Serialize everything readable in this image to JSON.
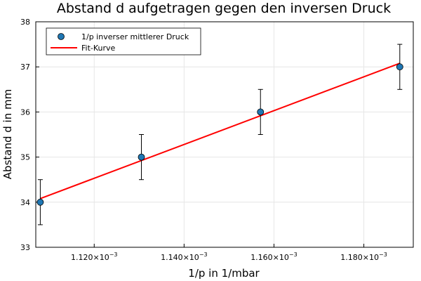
{
  "chart_data": {
    "type": "scatter",
    "title": "Abstand d aufgetragen gegen den inversen Druck",
    "xlabel": "1/p in 1/mbar",
    "ylabel": "Abstand d in mm",
    "xlim": [
      0.001107,
      0.001191
    ],
    "ylim": [
      33,
      38
    ],
    "x_ticks": [
      0.00112,
      0.00114,
      0.00116,
      0.00118
    ],
    "x_tick_labels": [
      {
        "mantissa": "1.120",
        "base": "×10",
        "exponent": "−3"
      },
      {
        "mantissa": "1.140",
        "base": "×10",
        "exponent": "−3"
      },
      {
        "mantissa": "1.160",
        "base": "×10",
        "exponent": "−3"
      },
      {
        "mantissa": "1.180",
        "base": "×10",
        "exponent": "−3"
      }
    ],
    "y_ticks": [
      33,
      34,
      35,
      36,
      37,
      38
    ],
    "y_tick_labels": [
      "33",
      "34",
      "35",
      "36",
      "37",
      "38"
    ],
    "grid": true,
    "legend_position": "top-left",
    "series": [
      {
        "name": "1/p inverser mittlerer Druck",
        "kind": "scatter",
        "color": "#1f77b4",
        "x": [
          0.001108,
          0.0011305,
          0.001157,
          0.001188
        ],
        "y": [
          34,
          35,
          36,
          37
        ],
        "y_err": [
          0.5,
          0.5,
          0.5,
          0.5
        ]
      },
      {
        "name": "Fit-Kurve",
        "kind": "line",
        "color": "#ff0000",
        "x": [
          0.001108,
          0.001188
        ],
        "y": [
          34.08,
          37.08
        ]
      }
    ]
  }
}
